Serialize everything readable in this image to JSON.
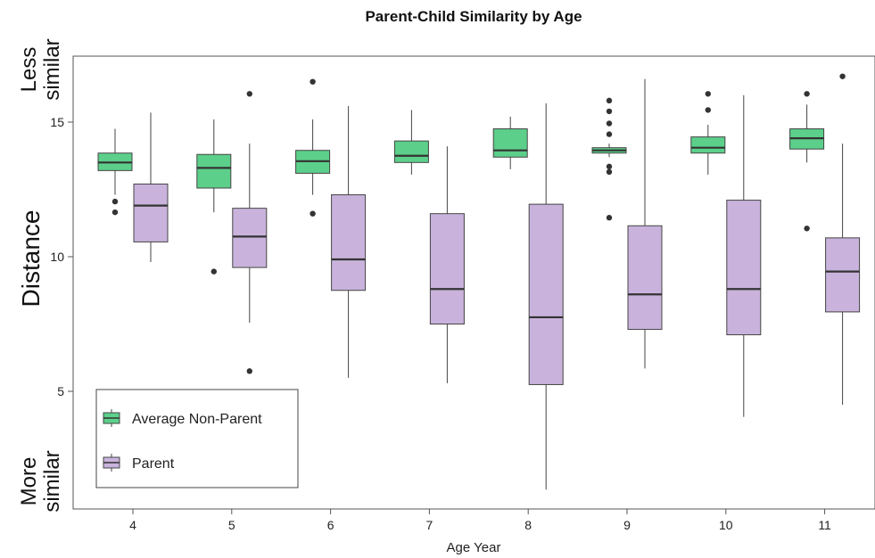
{
  "chart_data": {
    "type": "boxplot",
    "title": "Parent-Child Similarity by Age",
    "xlabel": "Age Year",
    "ylabel": "Distance",
    "y_annotation_top": [
      "Less",
      "similar"
    ],
    "y_annotation_bottom": [
      "More",
      "similar"
    ],
    "ylim": [
      1,
      17.5
    ],
    "yticks": [
      5,
      10,
      15
    ],
    "categories": [
      "4",
      "5",
      "6",
      "7",
      "8",
      "9",
      "10",
      "11"
    ],
    "legend_position": "bottom-left",
    "series": [
      {
        "name": "Average Non-Parent",
        "color": "#5ccf8a",
        "boxes": [
          {
            "whisker_low": 12.3,
            "q1": 13.2,
            "median": 13.5,
            "q3": 13.85,
            "whisker_high": 14.75,
            "outliers": [
              12.05,
              11.65
            ]
          },
          {
            "whisker_low": 11.65,
            "q1": 12.55,
            "median": 13.3,
            "q3": 13.8,
            "whisker_high": 15.1,
            "outliers": [
              9.45
            ]
          },
          {
            "whisker_low": 12.3,
            "q1": 13.1,
            "median": 13.55,
            "q3": 13.95,
            "whisker_high": 15.1,
            "outliers": [
              11.6,
              16.5
            ]
          },
          {
            "whisker_low": 13.05,
            "q1": 13.5,
            "median": 13.75,
            "q3": 14.3,
            "whisker_high": 15.45,
            "outliers": []
          },
          {
            "whisker_low": 13.25,
            "q1": 13.7,
            "median": 13.95,
            "q3": 14.75,
            "whisker_high": 15.2,
            "outliers": []
          },
          {
            "whisker_low": 13.7,
            "q1": 13.85,
            "median": 13.95,
            "q3": 14.05,
            "whisker_high": 14.2,
            "outliers": [
              15.8,
              15.4,
              14.95,
              14.55,
              13.35,
              13.15,
              11.45
            ]
          },
          {
            "whisker_low": 13.05,
            "q1": 13.85,
            "median": 14.05,
            "q3": 14.45,
            "whisker_high": 14.9,
            "outliers": [
              16.05,
              15.45
            ]
          },
          {
            "whisker_low": 13.5,
            "q1": 14.0,
            "median": 14.4,
            "q3": 14.75,
            "whisker_high": 15.65,
            "outliers": [
              16.05,
              11.05
            ]
          }
        ]
      },
      {
        "name": "Parent",
        "color": "#c9b3dc",
        "boxes": [
          {
            "whisker_low": 9.8,
            "q1": 10.55,
            "median": 11.9,
            "q3": 12.7,
            "whisker_high": 15.35,
            "outliers": []
          },
          {
            "whisker_low": 7.55,
            "q1": 9.6,
            "median": 10.75,
            "q3": 11.8,
            "whisker_high": 14.2,
            "outliers": [
              16.05,
              5.75
            ]
          },
          {
            "whisker_low": 5.5,
            "q1": 8.75,
            "median": 9.9,
            "q3": 12.3,
            "whisker_high": 15.6,
            "outliers": []
          },
          {
            "whisker_low": 5.3,
            "q1": 7.5,
            "median": 8.8,
            "q3": 11.6,
            "whisker_high": 14.1,
            "outliers": []
          },
          {
            "whisker_low": 1.35,
            "q1": 5.25,
            "median": 7.75,
            "q3": 11.95,
            "whisker_high": 15.7,
            "outliers": []
          },
          {
            "whisker_low": 5.85,
            "q1": 7.3,
            "median": 8.6,
            "q3": 11.15,
            "whisker_high": 16.6,
            "outliers": []
          },
          {
            "whisker_low": 4.05,
            "q1": 7.1,
            "median": 8.8,
            "q3": 12.1,
            "whisker_high": 16.0,
            "outliers": []
          },
          {
            "whisker_low": 4.5,
            "q1": 7.95,
            "median": 9.45,
            "q3": 10.7,
            "whisker_high": 14.2,
            "outliers": [
              16.7
            ]
          }
        ]
      }
    ]
  }
}
